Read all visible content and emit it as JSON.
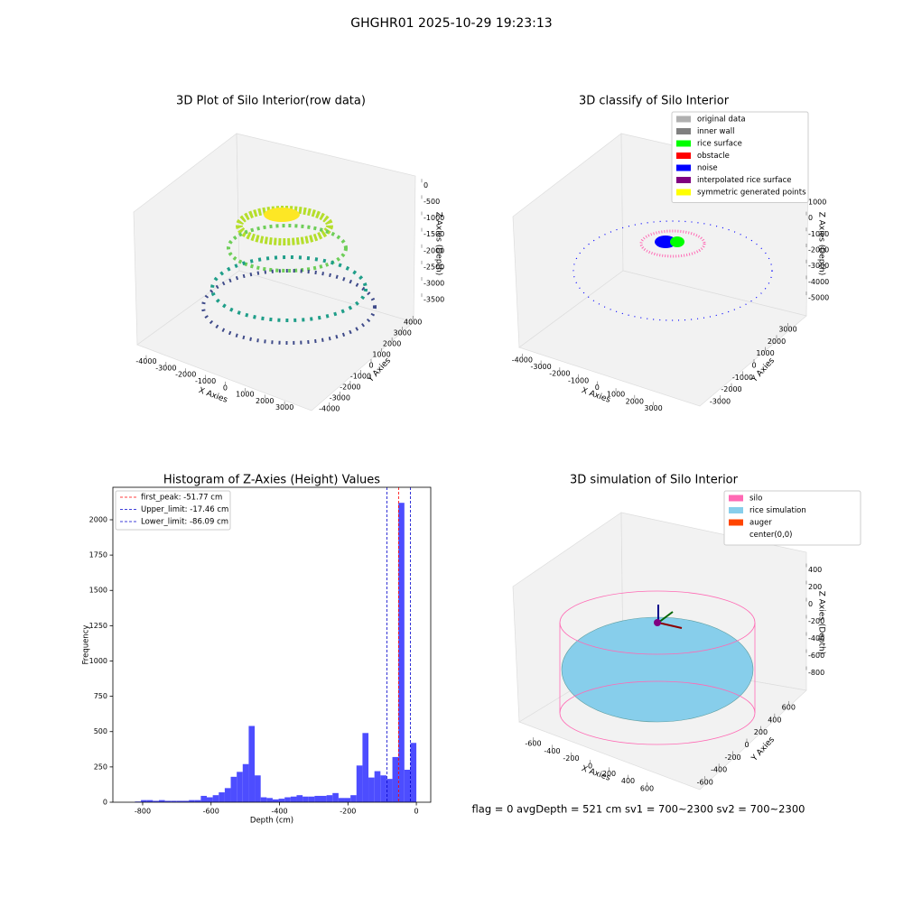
{
  "title": "GHGHR01 2025-10-29 19:23:13",
  "status": "flag = 0     avgDepth = 521 cm  sv1 = 700~2300  sv2 = 700~2300",
  "chart_data": [
    {
      "type": "scatter3d",
      "title": "3D Plot of Silo Interior(row data)",
      "xlabel": "X Axies",
      "ylabel": "Y Axies",
      "zlabel": "Z Axies (Depth)",
      "xlim": [
        -4500,
        4000
      ],
      "xticks": [
        -4000,
        -3000,
        -2000,
        -1000,
        0,
        1000,
        2000,
        3000
      ],
      "ylim": [
        -4500,
        4500
      ],
      "yticks": [
        -4000,
        -3000,
        -2000,
        -1000,
        0,
        1000,
        2000,
        3000,
        4000
      ],
      "zlim": [
        -3800,
        200
      ],
      "zticks": [
        -3500,
        -3000,
        -2500,
        -2000,
        -1500,
        -1000,
        -500,
        0
      ]
    },
    {
      "type": "scatter3d",
      "title": "3D classify of Silo Interior",
      "xlabel": "X Axies",
      "ylabel": "Y Axies",
      "zlabel": "Z Axies (Depth)",
      "xlim": [
        -4500,
        3600
      ],
      "xticks": [
        -4000,
        -3000,
        -2000,
        -1000,
        0,
        1000,
        2000,
        3000
      ],
      "ylim": [
        -3600,
        3600
      ],
      "yticks": [
        -3000,
        -2000,
        -1000,
        0,
        1000,
        2000,
        3000
      ],
      "zlim": [
        -5500,
        1500
      ],
      "zticks": [
        -5000,
        -4000,
        -3000,
        -2000,
        -1000,
        0,
        1000
      ],
      "legend": [
        {
          "name": "original data",
          "color": "#b0b0b0"
        },
        {
          "name": "inner wall",
          "color": "#808080"
        },
        {
          "name": "rice surface",
          "color": "#00ff00"
        },
        {
          "name": "obstacle",
          "color": "#ff0000"
        },
        {
          "name": "noise",
          "color": "#0000ff"
        },
        {
          "name": "interpolated rice surface",
          "color": "#800080"
        },
        {
          "name": "symmetric generated points",
          "color": "#ffff00"
        }
      ]
    },
    {
      "type": "histogram",
      "title": "Histogram of Z-Axies (Height) Values",
      "xlabel": "Depth (cm)",
      "ylabel": "Frequency",
      "color": "#4d4dff",
      "xlim": [
        -887,
        42
      ],
      "xticks": [
        -800,
        -600,
        -400,
        -200,
        0
      ],
      "ylim": [
        0,
        2230
      ],
      "yticks": [
        0,
        250,
        500,
        750,
        1000,
        1250,
        1500,
        1750,
        2000
      ],
      "bins": [
        -822.5,
        -805,
        -787.5,
        -770,
        -752.5,
        -735,
        -717.5,
        -700,
        -682.5,
        -665,
        -647.5,
        -630,
        -612.5,
        -595,
        -577.5,
        -560,
        -542.5,
        -525,
        -507.5,
        -490,
        -472.5,
        -455,
        -437.5,
        -420,
        -402.5,
        -385,
        -367.5,
        -350,
        -332.5,
        -315,
        -297.5,
        -280,
        -262.5,
        -245,
        -227.5,
        -210,
        -192.5,
        -175,
        -157.5,
        -140,
        -122.5,
        -105,
        -87.5,
        -70,
        -52.5,
        -35,
        -17.5,
        0
      ],
      "counts": [
        5,
        15,
        15,
        10,
        15,
        10,
        10,
        10,
        10,
        15,
        15,
        45,
        35,
        50,
        70,
        100,
        180,
        215,
        270,
        540,
        190,
        35,
        30,
        20,
        25,
        35,
        40,
        50,
        40,
        40,
        45,
        45,
        50,
        65,
        30,
        30,
        50,
        260,
        490,
        175,
        220,
        190,
        165,
        320,
        2120,
        230,
        420
      ],
      "lines": [
        {
          "name": "first_peak: -51.77 cm",
          "value": -51.77,
          "color": "#ff0000"
        },
        {
          "name": "Upper_limit: -17.46 cm",
          "value": -17.46,
          "color": "#0000cc"
        },
        {
          "name": "Lower_limit: -86.09 cm",
          "value": -86.09,
          "color": "#0000cc"
        }
      ]
    },
    {
      "type": "surface3d",
      "title": "3D simulation of Silo Interior",
      "xlabel": "X Axies",
      "ylabel": "Y Axies",
      "zlabel": "Z Axies (Depth)",
      "xlim": [
        -700,
        700
      ],
      "xticks": [
        -600,
        -400,
        -200,
        0,
        200,
        400,
        600
      ],
      "ylim": [
        -700,
        700
      ],
      "yticks": [
        -600,
        -400,
        -200,
        0,
        200,
        400,
        600
      ],
      "zlim": [
        -900,
        500
      ],
      "zticks": [
        -800,
        -600,
        -400,
        -200,
        0,
        200,
        400
      ],
      "legend": [
        {
          "name": "silo",
          "color": "#ff69b4"
        },
        {
          "name": "rice simulation",
          "color": "#87ceeb"
        },
        {
          "name": "auger",
          "color": "#ff4500"
        },
        {
          "name": "center(0,0)",
          "color": "#ffffff"
        }
      ]
    }
  ]
}
